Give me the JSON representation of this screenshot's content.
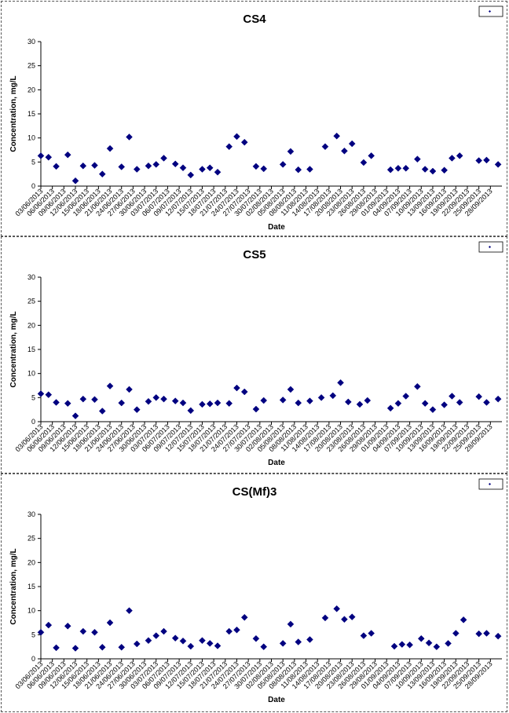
{
  "chart_data": [
    {
      "type": "scatter",
      "title": "CS4",
      "xlabel": "Date",
      "ylabel": "Concentration, mg/L",
      "ylim": [
        0,
        30
      ],
      "yticks": [
        "0",
        "5",
        "10",
        "15",
        "20",
        "25",
        "30"
      ],
      "xlim": [
        "03/06/2013",
        "01/10/2013"
      ],
      "xticks": [
        "03/06/2013",
        "06/06/2013",
        "09/06/2013",
        "12/06/2013",
        "15/06/2013",
        "18/06/2013",
        "21/06/2013",
        "24/06/2013",
        "27/06/2013",
        "30/06/2013",
        "03/07/2013",
        "06/07/2013",
        "09/07/2013",
        "12/07/2013",
        "15/07/2013",
        "18/07/2013",
        "21/07/2013",
        "24/07/2013",
        "27/07/2013",
        "30/07/2013",
        "02/08/2013",
        "05/08/2013",
        "08/08/2013",
        "11/08/2013",
        "14/08/2013",
        "17/08/2013",
        "20/08/2013",
        "23/08/2013",
        "26/08/2013",
        "29/08/2013",
        "01/09/2013",
        "04/09/2013",
        "07/09/2013",
        "10/09/2013",
        "13/09/2013",
        "16/09/2013",
        "19/09/2013",
        "22/09/2013",
        "25/09/2013",
        "28/09/2013"
      ],
      "legend": "top-right",
      "color": "#000080",
      "points": [
        {
          "x": "03/06/2013",
          "y": 6.3
        },
        {
          "x": "05/06/2013",
          "y": 6.0
        },
        {
          "x": "07/06/2013",
          "y": 4.1
        },
        {
          "x": "10/06/2013",
          "y": 6.5
        },
        {
          "x": "12/06/2013",
          "y": 1.1
        },
        {
          "x": "14/06/2013",
          "y": 4.2
        },
        {
          "x": "17/06/2013",
          "y": 4.3
        },
        {
          "x": "19/06/2013",
          "y": 2.5
        },
        {
          "x": "21/06/2013",
          "y": 7.8
        },
        {
          "x": "24/06/2013",
          "y": 4.0
        },
        {
          "x": "26/06/2013",
          "y": 10.2
        },
        {
          "x": "28/06/2013",
          "y": 3.5
        },
        {
          "x": "01/07/2013",
          "y": 4.2
        },
        {
          "x": "03/07/2013",
          "y": 4.5
        },
        {
          "x": "05/07/2013",
          "y": 5.8
        },
        {
          "x": "08/07/2013",
          "y": 4.6
        },
        {
          "x": "10/07/2013",
          "y": 3.8
        },
        {
          "x": "12/07/2013",
          "y": 2.3
        },
        {
          "x": "15/07/2013",
          "y": 3.5
        },
        {
          "x": "17/07/2013",
          "y": 3.8
        },
        {
          "x": "19/07/2013",
          "y": 2.9
        },
        {
          "x": "22/07/2013",
          "y": 8.2
        },
        {
          "x": "24/07/2013",
          "y": 10.3
        },
        {
          "x": "26/07/2013",
          "y": 9.1
        },
        {
          "x": "29/07/2013",
          "y": 4.1
        },
        {
          "x": "31/07/2013",
          "y": 3.6
        },
        {
          "x": "05/08/2013",
          "y": 4.5
        },
        {
          "x": "07/08/2013",
          "y": 7.2
        },
        {
          "x": "09/08/2013",
          "y": 3.4
        },
        {
          "x": "12/08/2013",
          "y": 3.5
        },
        {
          "x": "16/08/2013",
          "y": 8.2
        },
        {
          "x": "19/08/2013",
          "y": 10.4
        },
        {
          "x": "21/08/2013",
          "y": 7.3
        },
        {
          "x": "23/08/2013",
          "y": 8.8
        },
        {
          "x": "26/08/2013",
          "y": 4.9
        },
        {
          "x": "28/08/2013",
          "y": 6.3
        },
        {
          "x": "02/09/2013",
          "y": 3.4
        },
        {
          "x": "04/09/2013",
          "y": 3.7
        },
        {
          "x": "06/09/2013",
          "y": 3.7
        },
        {
          "x": "09/09/2013",
          "y": 5.6
        },
        {
          "x": "11/09/2013",
          "y": 3.5
        },
        {
          "x": "13/09/2013",
          "y": 3.1
        },
        {
          "x": "16/09/2013",
          "y": 3.3
        },
        {
          "x": "18/09/2013",
          "y": 5.8
        },
        {
          "x": "20/09/2013",
          "y": 6.3
        },
        {
          "x": "25/09/2013",
          "y": 5.3
        },
        {
          "x": "27/09/2013",
          "y": 5.4
        },
        {
          "x": "30/09/2013",
          "y": 4.5
        }
      ]
    },
    {
      "type": "scatter",
      "title": "CS5",
      "xlabel": "Date",
      "ylabel": "Concentration, mg/L",
      "ylim": [
        0,
        30
      ],
      "yticks": [
        "0",
        "5",
        "10",
        "15",
        "20",
        "25",
        "30"
      ],
      "xlim": [
        "03/06/2013",
        "01/10/2013"
      ],
      "xticks": [
        "03/06/2013",
        "06/06/2013",
        "09/06/2013",
        "12/06/2013",
        "15/06/2013",
        "18/06/2013",
        "21/06/2013",
        "24/06/2013",
        "27/06/2013",
        "30/06/2013",
        "03/07/2013",
        "06/07/2013",
        "09/07/2013",
        "12/07/2013",
        "15/07/2013",
        "18/07/2013",
        "21/07/2013",
        "24/07/2013",
        "27/07/2013",
        "30/07/2013",
        "02/08/2013",
        "05/08/2013",
        "08/08/2013",
        "11/08/2013",
        "14/08/2013",
        "17/08/2013",
        "20/08/2013",
        "23/08/2013",
        "26/08/2013",
        "29/08/2013",
        "01/09/2013",
        "04/09/2013",
        "07/09/2013",
        "10/09/2013",
        "13/09/2013",
        "16/09/2013",
        "19/09/2013",
        "22/09/2013",
        "25/09/2013",
        "28/09/2013"
      ],
      "legend": "top-right",
      "color": "#000080",
      "points": [
        {
          "x": "03/06/2013",
          "y": 5.8
        },
        {
          "x": "05/06/2013",
          "y": 5.6
        },
        {
          "x": "07/06/2013",
          "y": 4.0
        },
        {
          "x": "10/06/2013",
          "y": 3.8
        },
        {
          "x": "12/06/2013",
          "y": 1.2
        },
        {
          "x": "14/06/2013",
          "y": 4.7
        },
        {
          "x": "17/06/2013",
          "y": 4.6
        },
        {
          "x": "19/06/2013",
          "y": 2.2
        },
        {
          "x": "21/06/2013",
          "y": 7.4
        },
        {
          "x": "24/06/2013",
          "y": 3.9
        },
        {
          "x": "26/06/2013",
          "y": 6.7
        },
        {
          "x": "28/06/2013",
          "y": 2.5
        },
        {
          "x": "01/07/2013",
          "y": 4.2
        },
        {
          "x": "03/07/2013",
          "y": 5.0
        },
        {
          "x": "05/07/2013",
          "y": 4.7
        },
        {
          "x": "08/07/2013",
          "y": 4.3
        },
        {
          "x": "10/07/2013",
          "y": 3.9
        },
        {
          "x": "12/07/2013",
          "y": 2.3
        },
        {
          "x": "15/07/2013",
          "y": 3.6
        },
        {
          "x": "17/07/2013",
          "y": 3.7
        },
        {
          "x": "19/07/2013",
          "y": 3.9
        },
        {
          "x": "22/07/2013",
          "y": 3.8
        },
        {
          "x": "24/07/2013",
          "y": 7.0
        },
        {
          "x": "26/07/2013",
          "y": 6.2
        },
        {
          "x": "29/07/2013",
          "y": 2.6
        },
        {
          "x": "31/07/2013",
          "y": 4.4
        },
        {
          "x": "05/08/2013",
          "y": 4.5
        },
        {
          "x": "07/08/2013",
          "y": 6.7
        },
        {
          "x": "09/08/2013",
          "y": 3.9
        },
        {
          "x": "12/08/2013",
          "y": 4.3
        },
        {
          "x": "15/08/2013",
          "y": 5.0
        },
        {
          "x": "18/08/2013",
          "y": 5.4
        },
        {
          "x": "20/08/2013",
          "y": 8.1
        },
        {
          "x": "22/08/2013",
          "y": 4.1
        },
        {
          "x": "25/08/2013",
          "y": 3.6
        },
        {
          "x": "27/08/2013",
          "y": 4.4
        },
        {
          "x": "02/09/2013",
          "y": 2.8
        },
        {
          "x": "04/09/2013",
          "y": 3.8
        },
        {
          "x": "06/09/2013",
          "y": 5.3
        },
        {
          "x": "09/09/2013",
          "y": 7.3
        },
        {
          "x": "11/09/2013",
          "y": 3.8
        },
        {
          "x": "13/09/2013",
          "y": 2.5
        },
        {
          "x": "16/09/2013",
          "y": 3.5
        },
        {
          "x": "18/09/2013",
          "y": 5.3
        },
        {
          "x": "20/09/2013",
          "y": 4.0
        },
        {
          "x": "25/09/2013",
          "y": 5.2
        },
        {
          "x": "27/09/2013",
          "y": 4.0
        },
        {
          "x": "30/09/2013",
          "y": 4.7
        }
      ]
    },
    {
      "type": "scatter",
      "title": "CS(Mf)3",
      "xlabel": "Date",
      "ylabel": "Concentration, mg/L",
      "ylim": [
        0,
        30
      ],
      "yticks": [
        "0",
        "5",
        "10",
        "15",
        "20",
        "25",
        "30"
      ],
      "xlim": [
        "03/06/2013",
        "01/10/2013"
      ],
      "xticks": [
        "03/06/2013",
        "06/06/2013",
        "09/06/2013",
        "12/06/2013",
        "15/06/2013",
        "18/06/2013",
        "21/06/2013",
        "24/06/2013",
        "27/06/2013",
        "30/06/2013",
        "03/07/2013",
        "06/07/2013",
        "09/07/2013",
        "12/07/2013",
        "15/07/2013",
        "18/07/2013",
        "21/07/2013",
        "24/07/2013",
        "27/07/2013",
        "30/07/2013",
        "02/08/2013",
        "05/08/2013",
        "08/08/2013",
        "11/08/2013",
        "14/08/2013",
        "17/08/2013",
        "20/08/2013",
        "23/08/2013",
        "26/08/2013",
        "29/08/2013",
        "01/09/2013",
        "04/09/2013",
        "07/09/2013",
        "10/09/2013",
        "13/09/2013",
        "16/09/2013",
        "19/09/2013",
        "22/09/2013",
        "25/09/2013",
        "28/09/2013"
      ],
      "legend": "top-right",
      "color": "#000080",
      "points": [
        {
          "x": "03/06/2013",
          "y": 5.5
        },
        {
          "x": "05/06/2013",
          "y": 7.0
        },
        {
          "x": "07/06/2013",
          "y": 2.3
        },
        {
          "x": "10/06/2013",
          "y": 6.8
        },
        {
          "x": "12/06/2013",
          "y": 2.2
        },
        {
          "x": "14/06/2013",
          "y": 5.7
        },
        {
          "x": "17/06/2013",
          "y": 5.5
        },
        {
          "x": "19/06/2013",
          "y": 2.4
        },
        {
          "x": "21/06/2013",
          "y": 7.5
        },
        {
          "x": "24/06/2013",
          "y": 2.4
        },
        {
          "x": "26/06/2013",
          "y": 10.0
        },
        {
          "x": "28/06/2013",
          "y": 3.1
        },
        {
          "x": "01/07/2013",
          "y": 3.8
        },
        {
          "x": "03/07/2013",
          "y": 4.8
        },
        {
          "x": "05/07/2013",
          "y": 5.7
        },
        {
          "x": "08/07/2013",
          "y": 4.3
        },
        {
          "x": "10/07/2013",
          "y": 3.7
        },
        {
          "x": "12/07/2013",
          "y": 2.6
        },
        {
          "x": "15/07/2013",
          "y": 3.8
        },
        {
          "x": "17/07/2013",
          "y": 3.2
        },
        {
          "x": "19/07/2013",
          "y": 2.7
        },
        {
          "x": "22/07/2013",
          "y": 5.7
        },
        {
          "x": "24/07/2013",
          "y": 6.0
        },
        {
          "x": "26/07/2013",
          "y": 8.6
        },
        {
          "x": "29/07/2013",
          "y": 4.2
        },
        {
          "x": "31/07/2013",
          "y": 2.5
        },
        {
          "x": "05/08/2013",
          "y": 3.2
        },
        {
          "x": "07/08/2013",
          "y": 7.2
        },
        {
          "x": "09/08/2013",
          "y": 3.5
        },
        {
          "x": "12/08/2013",
          "y": 4.0
        },
        {
          "x": "16/08/2013",
          "y": 8.5
        },
        {
          "x": "19/08/2013",
          "y": 10.4
        },
        {
          "x": "21/08/2013",
          "y": 8.2
        },
        {
          "x": "23/08/2013",
          "y": 8.7
        },
        {
          "x": "26/08/2013",
          "y": 4.8
        },
        {
          "x": "28/08/2013",
          "y": 5.3
        },
        {
          "x": "03/09/2013",
          "y": 2.6
        },
        {
          "x": "05/09/2013",
          "y": 3.0
        },
        {
          "x": "07/09/2013",
          "y": 2.9
        },
        {
          "x": "10/09/2013",
          "y": 4.2
        },
        {
          "x": "12/09/2013",
          "y": 3.3
        },
        {
          "x": "14/09/2013",
          "y": 2.5
        },
        {
          "x": "17/09/2013",
          "y": 3.2
        },
        {
          "x": "19/09/2013",
          "y": 5.3
        },
        {
          "x": "21/09/2013",
          "y": 8.1
        },
        {
          "x": "25/09/2013",
          "y": 5.2
        },
        {
          "x": "27/09/2013",
          "y": 5.3
        },
        {
          "x": "30/09/2013",
          "y": 4.7
        }
      ]
    }
  ]
}
